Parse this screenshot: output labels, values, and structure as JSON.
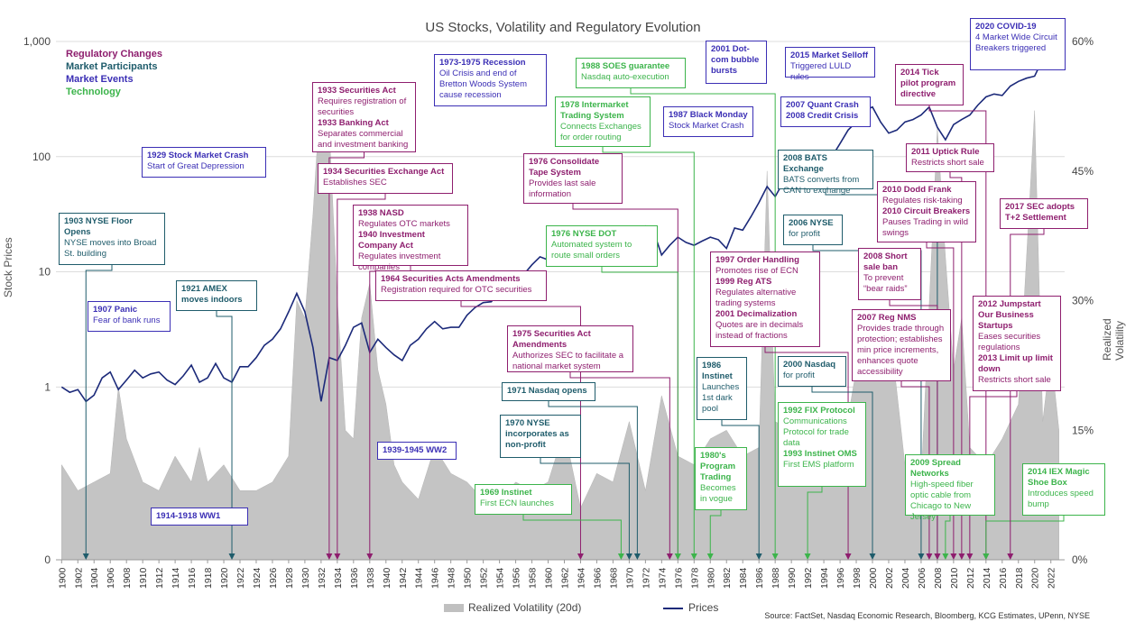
{
  "chart_data": {
    "title": "US Stocks, Volatility and Regulatory Evolution",
    "type": "line",
    "ylabel": "Stock Prices",
    "y2label": "Realized Volatility (p.a.)",
    "y_scale": "log",
    "yticks": [
      "0",
      "1",
      "10",
      "100",
      "1,000"
    ],
    "y2ticks": [
      "0%",
      "15%",
      "30%",
      "45%",
      "60%"
    ],
    "x_ticks": [
      "1900",
      "1902",
      "1904",
      "1906",
      "1908",
      "1910",
      "1912",
      "1914",
      "1916",
      "1918",
      "1920",
      "1922",
      "1924",
      "1926",
      "1928",
      "1930",
      "1932",
      "1934",
      "1936",
      "1938",
      "1940",
      "1942",
      "1944",
      "1946",
      "1948",
      "1950",
      "1952",
      "1954",
      "1956",
      "1958",
      "1960",
      "1962",
      "1964",
      "1966",
      "1968",
      "1970",
      "1972",
      "1974",
      "1976",
      "1978",
      "1980",
      "1982",
      "1984",
      "1986",
      "1988",
      "1990",
      "1992",
      "1994",
      "1996",
      "1998",
      "2000",
      "2002",
      "2004",
      "2006",
      "2008",
      "2010",
      "2012",
      "2014",
      "2016",
      "2018",
      "2020",
      "2022"
    ],
    "legend": [
      "Realized Volatility (20d)",
      "Prices"
    ],
    "source": "Source: FactSet, Nasdaq Economic Research, Bloomberg, KCG Estimates, UPenn, NYSE",
    "categories_legend": [
      {
        "label": "Regulatory Changes",
        "color": "#8e1e6e"
      },
      {
        "label": "Market Participants",
        "color": "#1f5c6b"
      },
      {
        "label": "Market Events",
        "color": "#3b2fb5"
      },
      {
        "label": "Technology",
        "color": "#3cb44b"
      }
    ],
    "price_series": {
      "name": "Prices",
      "points": [
        [
          1900,
          1.0
        ],
        [
          1901,
          0.9
        ],
        [
          1902,
          0.95
        ],
        [
          1903,
          0.75
        ],
        [
          1904,
          0.85
        ],
        [
          1905,
          1.2
        ],
        [
          1906,
          1.35
        ],
        [
          1907,
          0.95
        ],
        [
          1908,
          1.15
        ],
        [
          1909,
          1.4
        ],
        [
          1910,
          1.2
        ],
        [
          1911,
          1.3
        ],
        [
          1912,
          1.35
        ],
        [
          1913,
          1.15
        ],
        [
          1914,
          1.05
        ],
        [
          1915,
          1.25
        ],
        [
          1916,
          1.55
        ],
        [
          1917,
          1.1
        ],
        [
          1918,
          1.2
        ],
        [
          1919,
          1.6
        ],
        [
          1920,
          1.2
        ],
        [
          1921,
          1.1
        ],
        [
          1922,
          1.5
        ],
        [
          1923,
          1.5
        ],
        [
          1924,
          1.8
        ],
        [
          1925,
          2.3
        ],
        [
          1926,
          2.6
        ],
        [
          1927,
          3.2
        ],
        [
          1928,
          4.5
        ],
        [
          1929,
          6.5
        ],
        [
          1930,
          4.5
        ],
        [
          1931,
          2.2
        ],
        [
          1932,
          0.75
        ],
        [
          1933,
          1.8
        ],
        [
          1934,
          1.7
        ],
        [
          1935,
          2.3
        ],
        [
          1936,
          3.3
        ],
        [
          1937,
          3.6
        ],
        [
          1938,
          2.0
        ],
        [
          1939,
          2.6
        ],
        [
          1940,
          2.2
        ],
        [
          1941,
          1.9
        ],
        [
          1942,
          1.7
        ],
        [
          1943,
          2.3
        ],
        [
          1944,
          2.6
        ],
        [
          1945,
          3.2
        ],
        [
          1946,
          3.7
        ],
        [
          1947,
          3.2
        ],
        [
          1948,
          3.3
        ],
        [
          1949,
          3.3
        ],
        [
          1950,
          4.2
        ],
        [
          1951,
          4.9
        ],
        [
          1952,
          5.4
        ],
        [
          1953,
          5.5
        ],
        [
          1954,
          7.0
        ],
        [
          1955,
          9.5
        ],
        [
          1956,
          10.0
        ],
        [
          1957,
          9.5
        ],
        [
          1958,
          11.5
        ],
        [
          1959,
          13.5
        ],
        [
          1960,
          12.7
        ],
        [
          1961,
          15.5
        ],
        [
          1962,
          13.0
        ],
        [
          1963,
          16.0
        ],
        [
          1964,
          18.0
        ],
        [
          1965,
          20.0
        ],
        [
          1966,
          18.5
        ],
        [
          1967,
          21.0
        ],
        [
          1968,
          22.0
        ],
        [
          1969,
          21.0
        ],
        [
          1970,
          18.0
        ],
        [
          1971,
          22.0
        ],
        [
          1972,
          25.0
        ],
        [
          1973,
          22.5
        ],
        [
          1974,
          14.0
        ],
        [
          1975,
          17.0
        ],
        [
          1976,
          20.0
        ],
        [
          1977,
          18.0
        ],
        [
          1978,
          17.0
        ],
        [
          1979,
          18.5
        ],
        [
          1980,
          20.0
        ],
        [
          1981,
          19.0
        ],
        [
          1982,
          16.0
        ],
        [
          1983,
          24.0
        ],
        [
          1984,
          23.0
        ],
        [
          1985,
          30.0
        ],
        [
          1986,
          40.0
        ],
        [
          1987,
          55.0
        ],
        [
          1988,
          45.0
        ],
        [
          1989,
          60.0
        ],
        [
          1990,
          55.0
        ],
        [
          1991,
          70.0
        ],
        [
          1992,
          78.0
        ],
        [
          1993,
          85.0
        ],
        [
          1994,
          82.0
        ],
        [
          1995,
          100.0
        ],
        [
          1996,
          130.0
        ],
        [
          1997,
          170.0
        ],
        [
          1998,
          200.0
        ],
        [
          1999,
          250.0
        ],
        [
          2000,
          270.0
        ],
        [
          2001,
          200.0
        ],
        [
          2002,
          160.0
        ],
        [
          2003,
          170.0
        ],
        [
          2004,
          200.0
        ],
        [
          2005,
          210.0
        ],
        [
          2006,
          230.0
        ],
        [
          2007,
          270.0
        ],
        [
          2008,
          180.0
        ],
        [
          2009,
          140.0
        ],
        [
          2010,
          190.0
        ],
        [
          2011,
          210.0
        ],
        [
          2012,
          230.0
        ],
        [
          2013,
          280.0
        ],
        [
          2014,
          330.0
        ],
        [
          2015,
          350.0
        ],
        [
          2016,
          340.0
        ],
        [
          2017,
          410.0
        ],
        [
          2018,
          450.0
        ],
        [
          2019,
          480.0
        ],
        [
          2020,
          500.0
        ],
        [
          2021,
          700.0
        ],
        [
          2022,
          650.0
        ],
        [
          2023,
          680.0
        ]
      ]
    },
    "volatility_series": {
      "name": "Realized Volatility (20d)",
      "points": [
        [
          1900,
          11
        ],
        [
          1902,
          8
        ],
        [
          1904,
          9
        ],
        [
          1906,
          10
        ],
        [
          1907,
          20
        ],
        [
          1908,
          14
        ],
        [
          1910,
          9
        ],
        [
          1912,
          8
        ],
        [
          1914,
          12
        ],
        [
          1916,
          9
        ],
        [
          1917,
          13
        ],
        [
          1918,
          9
        ],
        [
          1920,
          11
        ],
        [
          1922,
          8
        ],
        [
          1924,
          8
        ],
        [
          1926,
          9
        ],
        [
          1928,
          12
        ],
        [
          1929,
          30
        ],
        [
          1930,
          28
        ],
        [
          1931,
          40
        ],
        [
          1932,
          55
        ],
        [
          1933,
          50
        ],
        [
          1934,
          30
        ],
        [
          1935,
          15
        ],
        [
          1936,
          14
        ],
        [
          1937,
          28
        ],
        [
          1938,
          32
        ],
        [
          1939,
          22
        ],
        [
          1940,
          18
        ],
        [
          1941,
          11
        ],
        [
          1942,
          9
        ],
        [
          1944,
          7
        ],
        [
          1946,
          13
        ],
        [
          1948,
          10
        ],
        [
          1950,
          9
        ],
        [
          1952,
          7
        ],
        [
          1954,
          7
        ],
        [
          1956,
          9
        ],
        [
          1958,
          8
        ],
        [
          1960,
          9
        ],
        [
          1962,
          15
        ],
        [
          1964,
          6
        ],
        [
          1966,
          10
        ],
        [
          1968,
          9
        ],
        [
          1970,
          16
        ],
        [
          1972,
          8
        ],
        [
          1974,
          19
        ],
        [
          1976,
          12
        ],
        [
          1978,
          11
        ],
        [
          1980,
          14
        ],
        [
          1982,
          15
        ],
        [
          1984,
          12
        ],
        [
          1986,
          13
        ],
        [
          1987,
          45
        ],
        [
          1988,
          16
        ],
        [
          1990,
          15
        ],
        [
          1992,
          9
        ],
        [
          1994,
          9
        ],
        [
          1996,
          11
        ],
        [
          1998,
          22
        ],
        [
          2000,
          24
        ],
        [
          2002,
          28
        ],
        [
          2004,
          11
        ],
        [
          2006,
          9
        ],
        [
          2008,
          50
        ],
        [
          2009,
          35
        ],
        [
          2010,
          22
        ],
        [
          2011,
          28
        ],
        [
          2012,
          13
        ],
        [
          2014,
          11
        ],
        [
          2016,
          14
        ],
        [
          2018,
          18
        ],
        [
          2020,
          52
        ],
        [
          2021,
          16
        ],
        [
          2022,
          24
        ],
        [
          2023,
          15
        ]
      ]
    }
  },
  "annotations": [
    {
      "id": "a1903",
      "cat": "part",
      "title": "1903 NYSE Floor Opens",
      "desc": "NYSE moves into Broad St. building"
    },
    {
      "id": "a1907",
      "cat": "evt",
      "title": "1907 Panic",
      "desc": "Fear of bank runs"
    },
    {
      "id": "a1914",
      "cat": "evt",
      "title": "1914-1918 WW1",
      "desc": ""
    },
    {
      "id": "a1921",
      "cat": "part",
      "title": "1921 AMEX moves indoors",
      "desc": ""
    },
    {
      "id": "a1929",
      "cat": "evt",
      "title": "1929 Stock Market Crash",
      "desc": "Start of Great Depression"
    },
    {
      "id": "a1933",
      "cat": "reg",
      "title": "1933 Securities Act",
      "desc": "Requires registration of securities",
      "title2": "1933 Banking Act",
      "desc2": "Separates commercial and investment banking"
    },
    {
      "id": "a1934",
      "cat": "reg",
      "title": "1934 Securities Exchange Act",
      "desc": "Establishes SEC"
    },
    {
      "id": "a1938",
      "cat": "reg",
      "title": "1938 NASD",
      "desc": "Regulates OTC markets",
      "title2": "1940 Investment Company Act",
      "desc2": "Regulates investment companies"
    },
    {
      "id": "a1939",
      "cat": "evt",
      "title": "1939-1945 WW2",
      "desc": ""
    },
    {
      "id": "a1964",
      "cat": "reg",
      "title": "1964 Securities Acts Amendments",
      "desc": "Registration required for OTC securities"
    },
    {
      "id": "a1969",
      "cat": "tech",
      "title": "1969 Instinet",
      "desc": "First ECN launches"
    },
    {
      "id": "a1970",
      "cat": "part",
      "title": "1970 NYSE incorporates as non-profit",
      "desc": ""
    },
    {
      "id": "a1971",
      "cat": "part",
      "title": "1971 Nasdaq opens",
      "desc": ""
    },
    {
      "id": "a1973",
      "cat": "evt",
      "title": "1973-1975 Recession",
      "desc": "Oil Crisis and end of Bretton Woods System cause recession"
    },
    {
      "id": "a1975",
      "cat": "reg",
      "title": "1975 Securities Act Amendments",
      "desc": "Authorizes SEC to facilitate a national market system"
    },
    {
      "id": "a1976a",
      "cat": "reg",
      "title": "1976 Consolidate Tape System",
      "desc": "Provides last sale information"
    },
    {
      "id": "a1976b",
      "cat": "tech",
      "title": "1976 NYSE DOT",
      "desc": "Automated system to route small orders"
    },
    {
      "id": "a1978",
      "cat": "tech",
      "title": "1978 Intermarket Trading System",
      "desc": "Connects Exchanges for order routing"
    },
    {
      "id": "a1980",
      "cat": "tech",
      "title": "1980's Program Trading",
      "desc": "Becomes in vogue"
    },
    {
      "id": "a1986",
      "cat": "part",
      "title": "1986 Instinet",
      "desc": "Launches 1st dark pool"
    },
    {
      "id": "a1987",
      "cat": "evt",
      "title": "1987 Black Monday",
      "desc": "Stock Market Crash"
    },
    {
      "id": "a1988",
      "cat": "tech",
      "title": "1988 SOES guarantee",
      "desc": "Nasdaq auto-execution"
    },
    {
      "id": "a1992",
      "cat": "tech",
      "title": "1992 FIX Protocol",
      "desc": "Communications Protocol for trade data",
      "title2": "1993 Instinet OMS",
      "desc2": "First EMS platform"
    },
    {
      "id": "a1997",
      "cat": "reg",
      "title": "1997 Order Handling",
      "desc": "Promotes rise of ECN",
      "title2": "1999 Reg ATS",
      "desc2": "Regulates alternative trading systems",
      "title3": "2001 Decimalization",
      "desc3": "Quotes are in decimals instead of fractions"
    },
    {
      "id": "a2000",
      "cat": "part",
      "title": "2000 Nasdaq",
      "desc": "for profit"
    },
    {
      "id": "a2001",
      "cat": "evt",
      "title": "2001 Dot-com bubble bursts",
      "desc": ""
    },
    {
      "id": "a2006",
      "cat": "part",
      "title": "2006 NYSE",
      "desc": "for profit"
    },
    {
      "id": "a2007a",
      "cat": "evt",
      "title": "2007 Quant Crash",
      "desc": "",
      "title2": "2008 Credit Crisis",
      "desc2": ""
    },
    {
      "id": "a2007b",
      "cat": "reg",
      "title": "2007 Reg NMS",
      "desc": "Provides trade through protection; establishes min price increments, enhances quote accessibility"
    },
    {
      "id": "a2008a",
      "cat": "part",
      "title": "2008 BATS Exchange",
      "desc": "BATS converts from CAN to exchange"
    },
    {
      "id": "a2008b",
      "cat": "reg",
      "title": "2008 Short sale ban",
      "desc": "To prevent “bear raids”"
    },
    {
      "id": "a2009",
      "cat": "tech",
      "title": "2009 Spread Networks",
      "desc": "High-speed fiber optic cable from Chicago to New Jersey"
    },
    {
      "id": "a2010",
      "cat": "reg",
      "title": "2010 Dodd Frank",
      "desc": "Regulates risk-taking",
      "title2": "2010 Circuit Breakers",
      "desc2": "Pauses Trading in wild swings"
    },
    {
      "id": "a2011",
      "cat": "reg",
      "title": "2011 Uptick Rule",
      "desc": "Restricts short sale"
    },
    {
      "id": "a2012",
      "cat": "reg",
      "title": "2012 Jumpstart Our Business Startups",
      "desc": "Eases securities regulations",
      "title2": "2013 Limit up limit down",
      "desc2": "Restricts short sale"
    },
    {
      "id": "a2014a",
      "cat": "reg",
      "title": "2014 Tick pilot program directive",
      "desc": ""
    },
    {
      "id": "a2014b",
      "cat": "tech",
      "title": "2014 IEX Magic Shoe Box",
      "desc": "Introduces speed bump"
    },
    {
      "id": "a2015",
      "cat": "evt",
      "title": "2015 Market Selloff",
      "desc": "Triggered LULD rules"
    },
    {
      "id": "a2017",
      "cat": "reg",
      "title": "2017 SEC adopts T+2 Settlement",
      "desc": ""
    },
    {
      "id": "a2020",
      "cat": "evt",
      "title": "2020 COVID-19",
      "desc": "4 Market Wide Circuit Breakers triggered"
    }
  ]
}
